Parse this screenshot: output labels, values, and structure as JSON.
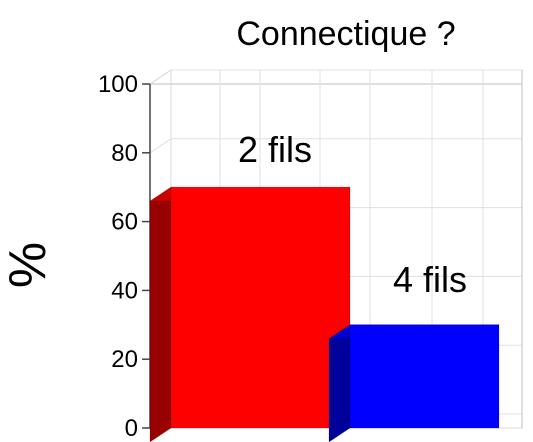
{
  "chart_data": {
    "type": "bar",
    "title": "Connectique ?",
    "xlabel": "",
    "ylabel": "%",
    "ylim": [
      0,
      100
    ],
    "yticks": [
      0,
      20,
      40,
      60,
      80,
      100
    ],
    "grid": true,
    "style": "3d",
    "categories": [
      "2 fils",
      "4 fils"
    ],
    "values": [
      70,
      30
    ],
    "data_labels": [
      "2 fils",
      "4 fils"
    ],
    "colors": {
      "front": [
        "#ff0000",
        "#0000ff"
      ],
      "side": [
        "#990000",
        "#00009a"
      ],
      "top": [
        "#cc0000",
        "#0000cc"
      ]
    }
  }
}
